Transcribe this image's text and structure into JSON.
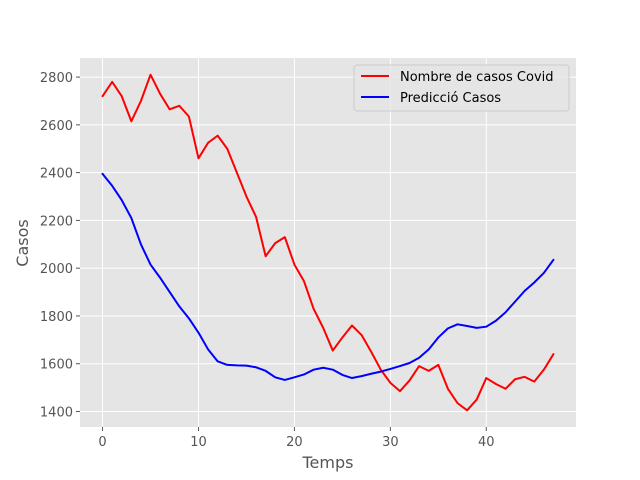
{
  "chart_data": {
    "type": "line",
    "title": "",
    "xlabel": "Temps",
    "ylabel": "Casos",
    "xlim": [
      -2.35,
      49.35
    ],
    "ylim": [
      1335,
      2880
    ],
    "xticks": [
      0,
      10,
      20,
      30,
      40
    ],
    "yticks": [
      1400,
      1600,
      1800,
      2000,
      2200,
      2400,
      2600,
      2800
    ],
    "grid": true,
    "legend_position": "top-right",
    "series": [
      {
        "name": "Nombre de casos Covid",
        "color": "#ff0000",
        "x": [
          0,
          1,
          2,
          3,
          4,
          5,
          6,
          7,
          8,
          9,
          10,
          11,
          12,
          13,
          14,
          15,
          16,
          17,
          18,
          19,
          20,
          21,
          22,
          23,
          24,
          25,
          26,
          27,
          28,
          29,
          30,
          31,
          32,
          33,
          34,
          35,
          36,
          37,
          38,
          39,
          40,
          41,
          42,
          43,
          44,
          45,
          46,
          47
        ],
        "values": [
          2720,
          2780,
          2720,
          2615,
          2700,
          2810,
          2730,
          2665,
          2680,
          2635,
          2460,
          2525,
          2555,
          2500,
          2400,
          2300,
          2215,
          2050,
          2105,
          2130,
          2015,
          1945,
          1830,
          1750,
          1655,
          1710,
          1760,
          1720,
          1650,
          1575,
          1520,
          1485,
          1530,
          1590,
          1570,
          1595,
          1495,
          1435,
          1405,
          1450,
          1540,
          1515,
          1495,
          1535,
          1545,
          1525,
          1575,
          1640
        ]
      },
      {
        "name": "Predicció Casos",
        "color": "#0000ff",
        "x": [
          0,
          1,
          2,
          3,
          4,
          5,
          6,
          7,
          8,
          9,
          10,
          11,
          12,
          13,
          14,
          15,
          16,
          17,
          18,
          19,
          20,
          21,
          22,
          23,
          24,
          25,
          26,
          27,
          28,
          29,
          30,
          31,
          32,
          33,
          34,
          35,
          36,
          37,
          38,
          39,
          40,
          41,
          42,
          43,
          44,
          45,
          46,
          47
        ],
        "values": [
          2395,
          2345,
          2285,
          2210,
          2100,
          2015,
          1960,
          1900,
          1840,
          1790,
          1730,
          1660,
          1610,
          1595,
          1593,
          1592,
          1585,
          1570,
          1543,
          1532,
          1543,
          1555,
          1575,
          1583,
          1575,
          1553,
          1540,
          1548,
          1558,
          1567,
          1578,
          1590,
          1603,
          1625,
          1660,
          1710,
          1748,
          1765,
          1758,
          1750,
          1755,
          1780,
          1815,
          1860,
          1905,
          1940,
          1980,
          2035
        ]
      }
    ]
  }
}
